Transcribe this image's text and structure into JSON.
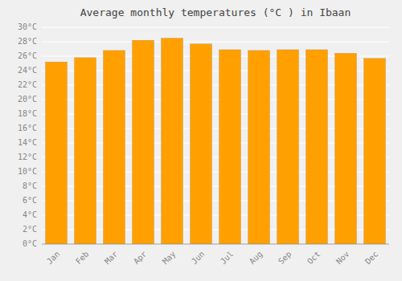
{
  "chart_data": {
    "type": "bar",
    "title": "Average monthly temperatures (°C ) in Ibaan",
    "categories": [
      "Jan",
      "Feb",
      "Mar",
      "Apr",
      "May",
      "Jun",
      "Jul",
      "Aug",
      "Sep",
      "Oct",
      "Nov",
      "Dec"
    ],
    "values": [
      25.2,
      25.8,
      26.8,
      28.2,
      28.5,
      27.7,
      26.9,
      26.8,
      26.9,
      26.9,
      26.4,
      25.7
    ],
    "color": "#FFA000",
    "ylim": [
      0,
      30
    ],
    "yticks": [
      {
        "value": 0,
        "label": "0°C"
      },
      {
        "value": 2,
        "label": "2°C"
      },
      {
        "value": 4,
        "label": "4°C"
      },
      {
        "value": 6,
        "label": "6°C"
      },
      {
        "value": 8,
        "label": "8°C"
      },
      {
        "value": 10,
        "label": "10°C"
      },
      {
        "value": 12,
        "label": "12°C"
      },
      {
        "value": 14,
        "label": "14°C"
      },
      {
        "value": 16,
        "label": "16°C"
      },
      {
        "value": 18,
        "label": "18°C"
      },
      {
        "value": 20,
        "label": "20°C"
      },
      {
        "value": 22,
        "label": "22°C"
      },
      {
        "value": 24,
        "label": "24°C"
      },
      {
        "value": 26,
        "label": "26°C"
      },
      {
        "value": 28,
        "label": "28°C"
      },
      {
        "value": 30,
        "label": "30°C"
      }
    ],
    "grid": true
  }
}
